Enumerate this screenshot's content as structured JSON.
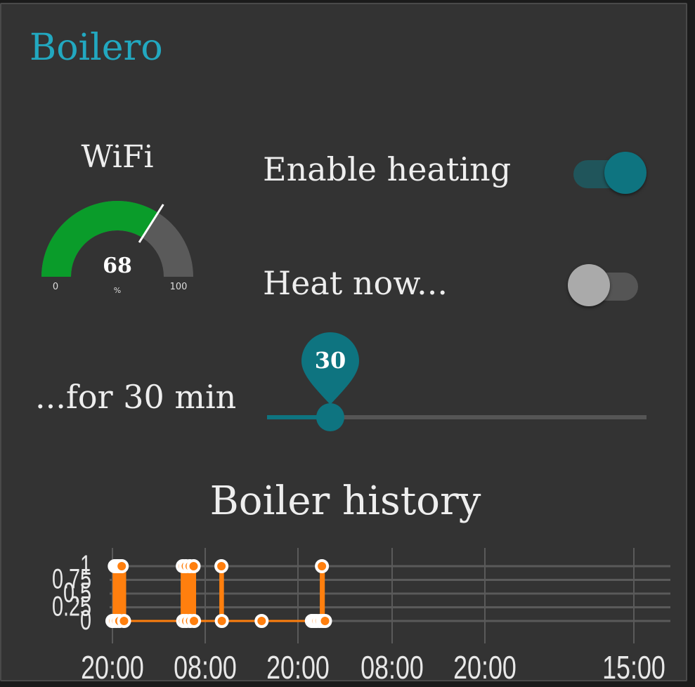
{
  "app": {
    "title": "Boilero"
  },
  "wifi": {
    "title": "WiFi",
    "value": 68,
    "value_text": "68",
    "unit": "%",
    "min": 0,
    "min_text": "0",
    "max": 100,
    "max_text": "100",
    "fill_color": "#0a9c2a",
    "track_color": "#5a5a5a"
  },
  "controls": {
    "enable_heating": {
      "label": "Enable heating",
      "on": true
    },
    "heat_now": {
      "label": "Heat now...",
      "on": false
    },
    "duration": {
      "label": "...for 30 min",
      "value": 30,
      "value_text": "30",
      "min": 0,
      "max": 180
    }
  },
  "colors": {
    "accent": "#0e7480",
    "accent_track": "#20555b",
    "title": "#22a8c0",
    "series": "#ff7f0e"
  },
  "chart_data": {
    "type": "line",
    "title": "Boiler history",
    "x_tick_labels": [
      "20:00",
      "08:00",
      "20:00",
      "08:00",
      "20:00",
      "15:00"
    ],
    "y_tick_labels": [
      "0",
      "0.25",
      "0.5",
      "0.75",
      "1"
    ],
    "ylim": [
      0,
      1
    ],
    "grid": true,
    "series": [
      {
        "x": [
          0.0,
          0.1,
          0.3,
          0.5,
          0.6,
          0.7,
          0.9,
          1.0,
          1.2,
          1.5,
          9.1,
          9.15,
          9.5,
          9.55,
          10.0,
          10.05,
          10.5,
          10.55,
          14.1,
          14.15,
          19.3,
          25.8,
          26.1,
          26.4,
          26.8,
          27.1,
          27.2,
          27.5
        ],
        "y": [
          0,
          0,
          1,
          0,
          1,
          1,
          0,
          1,
          1,
          0,
          1,
          0,
          1,
          0,
          1,
          0,
          1,
          0,
          1,
          0,
          0,
          0,
          0,
          0,
          0,
          1,
          0,
          0
        ]
      }
    ]
  }
}
